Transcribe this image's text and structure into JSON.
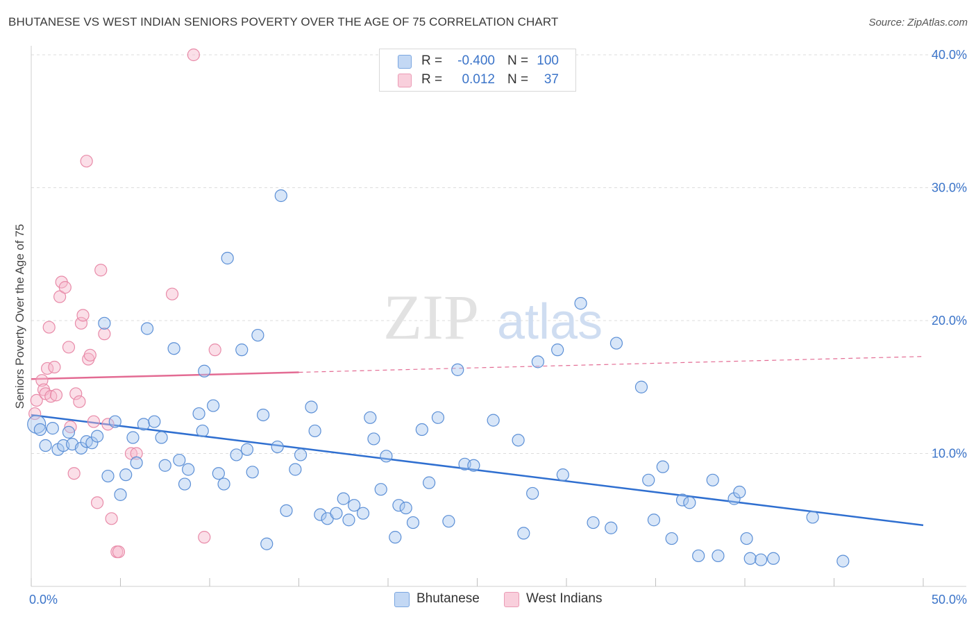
{
  "header": {
    "title": "BHUTANESE VS WEST INDIAN SENIORS POVERTY OVER THE AGE OF 75 CORRELATION CHART",
    "source": "Source: ZipAtlas.com"
  },
  "legend": {
    "rows": [
      {
        "r_label": "R =",
        "r_value": "-0.400",
        "n_label": "N =",
        "n_value": "100"
      },
      {
        "r_label": "R =",
        "r_value": "0.012",
        "n_label": "N =",
        "n_value": "37"
      }
    ]
  },
  "bottom_legend": {
    "bhutanese": "Bhutanese",
    "west_indians": "West Indians"
  },
  "watermark": {
    "zip": "ZIP",
    "atlas": "atlas"
  },
  "colors": {
    "blue_fill": "#a9c8f0",
    "blue_stroke": "#5b8fd6",
    "blue_line": "#2f6fd0",
    "pink_fill": "#f6b8cb",
    "pink_stroke": "#e88aa8",
    "pink_line": "#e36b93",
    "tick_text": "#3b74c9"
  },
  "chart_data": {
    "type": "scatter",
    "title": "BHUTANESE VS WEST INDIAN SENIORS POVERTY OVER THE AGE OF 75 CORRELATION CHART",
    "xlabel": "",
    "ylabel": "Seniors Poverty Over the Age of 75",
    "xlim": [
      0,
      50
    ],
    "ylim": [
      0,
      40
    ],
    "x_tick_labels": [
      "0.0%",
      "50.0%"
    ],
    "y_ticks": [
      10,
      20,
      30,
      40
    ],
    "y_tick_labels": [
      "10.0%",
      "20.0%",
      "30.0%",
      "40.0%"
    ],
    "grid": true,
    "series": [
      {
        "name": "Bhutanese",
        "r": -0.4,
        "n": 100,
        "trend": {
          "x": [
            0,
            50
          ],
          "y": [
            12.9,
            4.6
          ],
          "dashed_from": null
        },
        "points": [
          [
            0.3,
            12.2
          ],
          [
            0.5,
            11.8
          ],
          [
            0.8,
            10.6
          ],
          [
            1.2,
            11.9
          ],
          [
            1.5,
            10.3
          ],
          [
            1.8,
            10.6
          ],
          [
            2.1,
            11.6
          ],
          [
            2.3,
            10.7
          ],
          [
            2.8,
            10.4
          ],
          [
            3.1,
            10.9
          ],
          [
            3.4,
            10.8
          ],
          [
            3.7,
            11.3
          ],
          [
            4.1,
            19.8
          ],
          [
            4.3,
            8.3
          ],
          [
            4.7,
            12.4
          ],
          [
            5.0,
            6.9
          ],
          [
            5.3,
            8.4
          ],
          [
            5.7,
            11.2
          ],
          [
            5.9,
            9.3
          ],
          [
            6.3,
            12.2
          ],
          [
            6.5,
            19.4
          ],
          [
            6.9,
            12.4
          ],
          [
            7.3,
            11.2
          ],
          [
            7.5,
            9.1
          ],
          [
            8.0,
            17.9
          ],
          [
            8.3,
            9.5
          ],
          [
            8.6,
            7.7
          ],
          [
            8.8,
            8.8
          ],
          [
            9.4,
            13.0
          ],
          [
            9.6,
            11.7
          ],
          [
            9.7,
            16.2
          ],
          [
            10.2,
            13.6
          ],
          [
            10.5,
            8.5
          ],
          [
            10.8,
            7.7
          ],
          [
            11.0,
            24.7
          ],
          [
            11.5,
            9.9
          ],
          [
            11.8,
            17.8
          ],
          [
            12.1,
            10.3
          ],
          [
            12.4,
            8.6
          ],
          [
            12.7,
            18.9
          ],
          [
            13.0,
            12.9
          ],
          [
            13.2,
            3.2
          ],
          [
            13.8,
            10.5
          ],
          [
            14.0,
            29.4
          ],
          [
            14.3,
            5.7
          ],
          [
            14.8,
            8.8
          ],
          [
            15.1,
            9.9
          ],
          [
            15.7,
            13.5
          ],
          [
            15.9,
            11.7
          ],
          [
            16.2,
            5.4
          ],
          [
            16.6,
            5.1
          ],
          [
            17.1,
            5.5
          ],
          [
            17.5,
            6.6
          ],
          [
            17.8,
            5.0
          ],
          [
            18.1,
            6.1
          ],
          [
            18.6,
            5.5
          ],
          [
            19.0,
            12.7
          ],
          [
            19.2,
            11.1
          ],
          [
            19.6,
            7.3
          ],
          [
            19.9,
            9.8
          ],
          [
            20.4,
            3.7
          ],
          [
            20.6,
            6.1
          ],
          [
            21.0,
            5.9
          ],
          [
            21.4,
            4.8
          ],
          [
            21.9,
            11.8
          ],
          [
            22.3,
            7.8
          ],
          [
            22.8,
            12.7
          ],
          [
            23.4,
            4.9
          ],
          [
            23.9,
            16.3
          ],
          [
            24.3,
            9.2
          ],
          [
            24.8,
            9.1
          ],
          [
            25.9,
            12.5
          ],
          [
            27.3,
            11.0
          ],
          [
            27.6,
            4.0
          ],
          [
            28.1,
            7.0
          ],
          [
            28.4,
            16.9
          ],
          [
            29.5,
            17.8
          ],
          [
            29.8,
            8.4
          ],
          [
            30.8,
            21.3
          ],
          [
            31.5,
            4.8
          ],
          [
            32.5,
            4.4
          ],
          [
            32.8,
            18.3
          ],
          [
            34.2,
            15.0
          ],
          [
            34.6,
            8.0
          ],
          [
            34.9,
            5.0
          ],
          [
            35.4,
            9.0
          ],
          [
            35.9,
            3.6
          ],
          [
            36.5,
            6.5
          ],
          [
            36.9,
            6.3
          ],
          [
            37.4,
            2.3
          ],
          [
            38.2,
            8.0
          ],
          [
            38.5,
            2.3
          ],
          [
            39.4,
            6.6
          ],
          [
            39.7,
            7.1
          ],
          [
            40.1,
            3.6
          ],
          [
            40.3,
            2.1
          ],
          [
            40.9,
            2.0
          ],
          [
            41.6,
            2.1
          ],
          [
            43.8,
            5.2
          ],
          [
            45.5,
            1.9
          ]
        ]
      },
      {
        "name": "West Indians",
        "r": 0.012,
        "n": 37,
        "trend": {
          "x": [
            0,
            50
          ],
          "y": [
            15.6,
            17.3
          ],
          "dashed_from": 15
        },
        "points": [
          [
            0.2,
            13.0
          ],
          [
            0.3,
            14.0
          ],
          [
            0.6,
            15.5
          ],
          [
            0.7,
            14.8
          ],
          [
            0.8,
            14.5
          ],
          [
            0.9,
            16.4
          ],
          [
            1.0,
            19.5
          ],
          [
            1.1,
            14.3
          ],
          [
            1.3,
            16.5
          ],
          [
            1.4,
            14.4
          ],
          [
            1.6,
            21.8
          ],
          [
            1.7,
            22.9
          ],
          [
            1.9,
            22.5
          ],
          [
            2.1,
            18.0
          ],
          [
            2.2,
            12.0
          ],
          [
            2.4,
            8.5
          ],
          [
            2.5,
            14.5
          ],
          [
            2.7,
            13.9
          ],
          [
            2.8,
            19.8
          ],
          [
            2.9,
            20.4
          ],
          [
            3.2,
            17.1
          ],
          [
            3.3,
            17.4
          ],
          [
            3.5,
            12.4
          ],
          [
            3.7,
            6.3
          ],
          [
            3.9,
            23.8
          ],
          [
            4.1,
            19.0
          ],
          [
            4.3,
            12.2
          ],
          [
            4.5,
            5.1
          ],
          [
            4.8,
            2.6
          ],
          [
            4.9,
            2.6
          ],
          [
            5.6,
            10.0
          ],
          [
            5.9,
            10.0
          ],
          [
            3.1,
            32.0
          ],
          [
            7.9,
            22.0
          ],
          [
            9.1,
            40.0
          ],
          [
            9.7,
            3.7
          ],
          [
            10.3,
            17.8
          ]
        ]
      }
    ]
  }
}
